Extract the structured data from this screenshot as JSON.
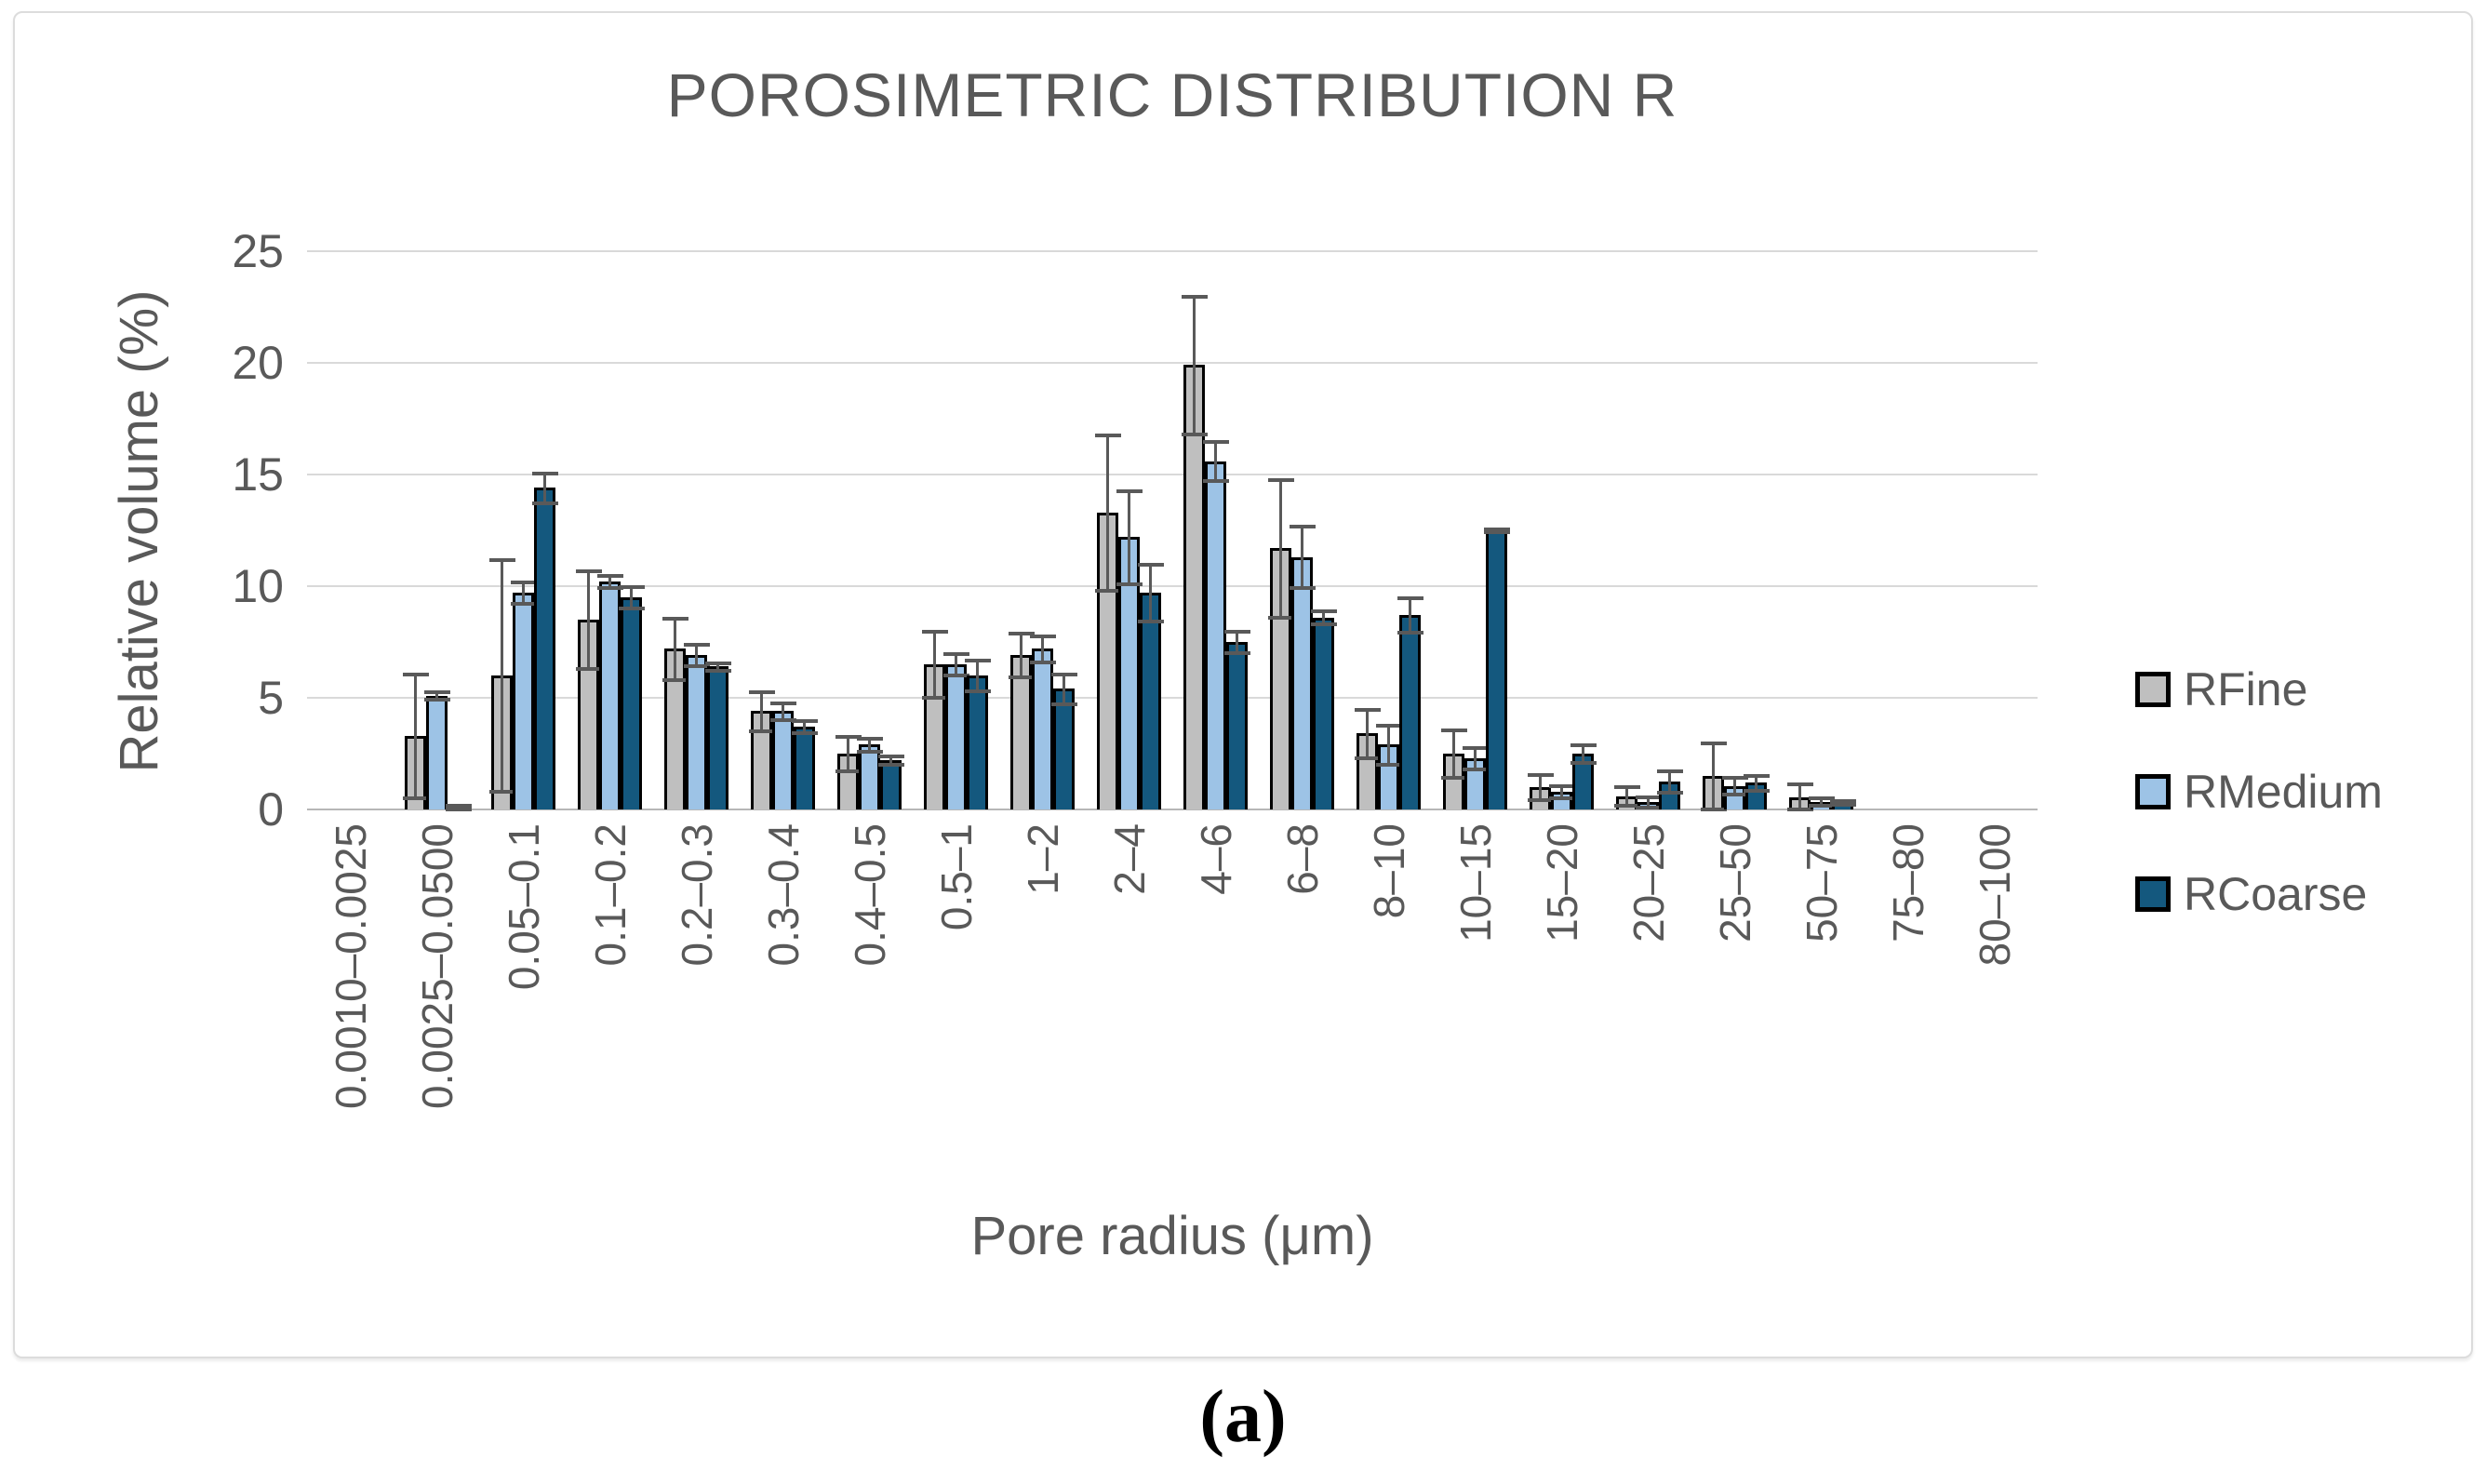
{
  "figure": {
    "caption": "(a)"
  },
  "chart_data": {
    "type": "bar",
    "title": "POROSIMETRIC DISTRIBUTION R",
    "xlabel": "Pore radius (μm)",
    "ylabel": "Relative volume (%)",
    "ylim": [
      0,
      25
    ],
    "yticks": [
      0,
      5,
      10,
      15,
      20,
      25
    ],
    "grid": true,
    "legend_position": "right",
    "error_bars": true,
    "text_color": "#595959",
    "gridline_color": "#d9d9d9",
    "axis_line_color": "#b7b7b7",
    "error_bar_color": "#595959",
    "categories": [
      "0.0010–0.0025",
      "0.0025–0.0500",
      "0.05–0.1",
      "0.1–0.2",
      "0.2–0.3",
      "0.3–0.4",
      "0.4–0.5",
      "0.5–1",
      "1–2",
      "2–4",
      "4–6",
      "6–8",
      "8–10",
      "10–15",
      "15–20",
      "20–25",
      "25–50",
      "50–75",
      "75–80",
      "80–100"
    ],
    "series": [
      {
        "name": "RFine",
        "color": "#bfbfbf",
        "values": [
          0,
          3.3,
          6.0,
          8.5,
          7.2,
          4.4,
          2.5,
          6.5,
          6.9,
          13.3,
          19.9,
          11.7,
          3.4,
          2.5,
          1.0,
          0.6,
          1.5,
          0.55,
          0,
          0
        ],
        "errors": [
          0,
          2.8,
          5.2,
          2.2,
          1.4,
          0.9,
          0.8,
          1.5,
          1.0,
          3.5,
          3.1,
          3.1,
          1.1,
          1.1,
          0.6,
          0.45,
          1.5,
          0.6,
          0,
          0
        ]
      },
      {
        "name": "RMedium",
        "color": "#9dc3e6",
        "values": [
          0,
          5.1,
          9.7,
          10.2,
          6.9,
          4.4,
          2.9,
          6.5,
          7.2,
          12.2,
          15.6,
          11.3,
          2.9,
          2.3,
          0.8,
          0.35,
          1.05,
          0.35,
          0,
          0
        ],
        "errors": [
          0,
          0.2,
          0.5,
          0.3,
          0.5,
          0.4,
          0.3,
          0.5,
          0.6,
          2.1,
          0.9,
          1.4,
          0.9,
          0.5,
          0.3,
          0.25,
          0.4,
          0.2,
          0,
          0
        ]
      },
      {
        "name": "RCoarse",
        "color": "#14587e",
        "values": [
          0,
          0.1,
          14.4,
          9.5,
          6.4,
          3.7,
          2.2,
          6.0,
          5.4,
          9.7,
          7.5,
          8.6,
          8.7,
          12.5,
          2.5,
          1.25,
          1.2,
          0.3,
          0,
          0
        ],
        "errors": [
          0,
          0.1,
          0.7,
          0.5,
          0.2,
          0.3,
          0.2,
          0.7,
          0.7,
          1.3,
          0.5,
          0.3,
          0.8,
          0.1,
          0.4,
          0.5,
          0.35,
          0.1,
          0,
          0
        ]
      }
    ]
  }
}
